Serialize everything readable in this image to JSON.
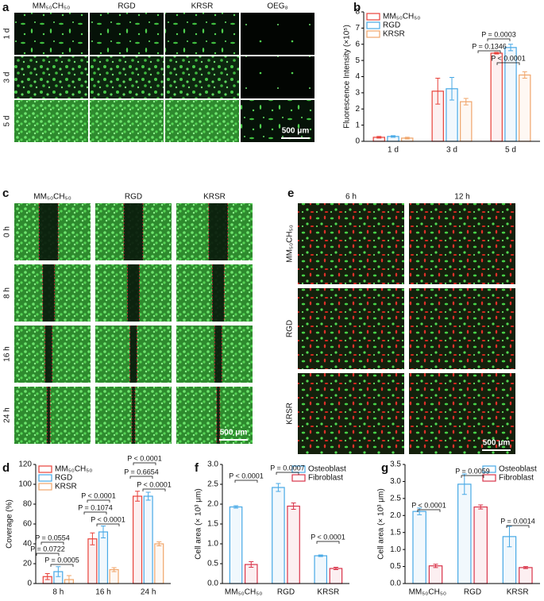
{
  "panels": {
    "a": {
      "label": "a",
      "columns": [
        "MM₅₀CH₅₀",
        "RGD",
        "KRSR",
        "OEG₈"
      ],
      "rows": [
        "1 d",
        "3 d",
        "5 d"
      ],
      "scale_bar": "500 μm"
    },
    "c": {
      "label": "c",
      "columns": [
        "MM₅₀CH₅₀",
        "RGD",
        "KRSR"
      ],
      "rows": [
        "0 h",
        "8 h",
        "16 h",
        "24 h"
      ],
      "scale_bar": "500 μm"
    },
    "e": {
      "label": "e",
      "columns": [
        "6 h",
        "12 h"
      ],
      "rows": [
        "MM₅₀CH₅₀",
        "RGD",
        "KRSR"
      ],
      "scale_bar": "500 μm"
    }
  },
  "chart_data": [
    {
      "type": "bar",
      "panel_label": "b",
      "y_label": "Fluorescence Intensity (×10⁵)",
      "categories": [
        "1 d",
        "3 d",
        "5 d"
      ],
      "ylim": [
        0,
        8
      ],
      "yticks": [
        0,
        1,
        2,
        3,
        4,
        5,
        6,
        7,
        8
      ],
      "grid": false,
      "legend": "upper-left",
      "series": [
        {
          "name": "MM₅₀CH₅₀",
          "color": "#e8413a",
          "values": [
            0.25,
            3.1,
            5.45
          ],
          "errors": [
            0.05,
            0.8,
            0.05
          ]
        },
        {
          "name": "RGD",
          "color": "#48a9e6",
          "values": [
            0.3,
            3.25,
            5.8
          ],
          "errors": [
            0.05,
            0.7,
            0.2
          ]
        },
        {
          "name": "KRSR",
          "color": "#f0a56a",
          "values": [
            0.2,
            2.45,
            4.1
          ],
          "errors": [
            0.05,
            0.2,
            0.2
          ]
        }
      ],
      "annotations": [
        "P = 0.0003",
        "P = 0.1346",
        "P < 0.0001"
      ]
    },
    {
      "type": "bar",
      "panel_label": "d",
      "y_label": "Coverage (%)",
      "categories": [
        "8 h",
        "16 h",
        "24 h"
      ],
      "ylim": [
        0,
        120
      ],
      "yticks": [
        0,
        20,
        40,
        60,
        80,
        100,
        120
      ],
      "grid": false,
      "legend": "upper-left",
      "series": [
        {
          "name": "MM₅₀CH₅₀",
          "color": "#e8413a",
          "values": [
            7,
            45,
            88
          ],
          "errors": [
            3,
            6,
            5
          ]
        },
        {
          "name": "RGD",
          "color": "#48a9e6",
          "values": [
            12,
            52,
            88
          ],
          "errors": [
            5,
            6,
            4
          ]
        },
        {
          "name": "KRSR",
          "color": "#f0a56a",
          "values": [
            4,
            14,
            40
          ],
          "errors": [
            4,
            2,
            2
          ]
        }
      ],
      "annotations": [
        "P = 0.0554",
        "P = 0.0722",
        "P = 0.0005",
        "P < 0.0001",
        "P = 0.1074",
        "P < 0.0001",
        "P < 0.0001",
        "P = 0.6654",
        "P < 0.0001"
      ]
    },
    {
      "type": "bar",
      "panel_label": "f",
      "y_label": "Cell area (× 10³ μm)",
      "categories": [
        "MM₅₀CH₅₀",
        "RGD",
        "KRSR"
      ],
      "ylim": [
        0,
        3
      ],
      "yticks": [
        {
          "value": 0,
          "label": "0.0"
        },
        0.5,
        {
          "value": 1,
          "label": "1.0"
        },
        1.5,
        {
          "value": 2,
          "label": "2.0"
        },
        2.5,
        {
          "value": 3,
          "label": "3.0"
        }
      ],
      "grid": false,
      "legend": "upper-right",
      "series": [
        {
          "name": "Osteoblast",
          "color": "#48a9e6",
          "values": [
            1.93,
            2.42,
            0.7
          ],
          "errors": [
            0.03,
            0.1,
            0.02
          ]
        },
        {
          "name": "Fibroblast",
          "color": "#d9344a",
          "values": [
            0.48,
            1.95,
            0.38
          ],
          "errors": [
            0.07,
            0.08,
            0.03
          ]
        }
      ],
      "annotations": [
        "P < 0.0001",
        "P = 0.0007",
        "P < 0.0001"
      ]
    },
    {
      "type": "bar",
      "panel_label": "g",
      "y_label": "Cell area (× 10³ μm)",
      "categories": [
        "MM₅₀CH₅₀",
        "RGD",
        "KRSR"
      ],
      "ylim": [
        0,
        3.5
      ],
      "yticks": [
        {
          "value": 0,
          "label": "0.0"
        },
        0.5,
        {
          "value": 1,
          "label": "1.0"
        },
        1.5,
        {
          "value": 2,
          "label": "2.0"
        },
        2.5,
        {
          "value": 3,
          "label": "3.0"
        },
        3.5
      ],
      "grid": false,
      "legend": "upper-right",
      "series": [
        {
          "name": "Osteoblast",
          "color": "#48a9e6",
          "values": [
            2.12,
            2.92,
            1.38
          ],
          "errors": [
            0.1,
            0.3,
            0.3
          ]
        },
        {
          "name": "Fibroblast",
          "color": "#d9344a",
          "values": [
            0.52,
            2.25,
            0.47
          ],
          "errors": [
            0.05,
            0.06,
            0.03
          ]
        }
      ],
      "annotations": [
        "P < 0.0001",
        "P = 0.0059",
        "P = 0.0014"
      ]
    }
  ]
}
